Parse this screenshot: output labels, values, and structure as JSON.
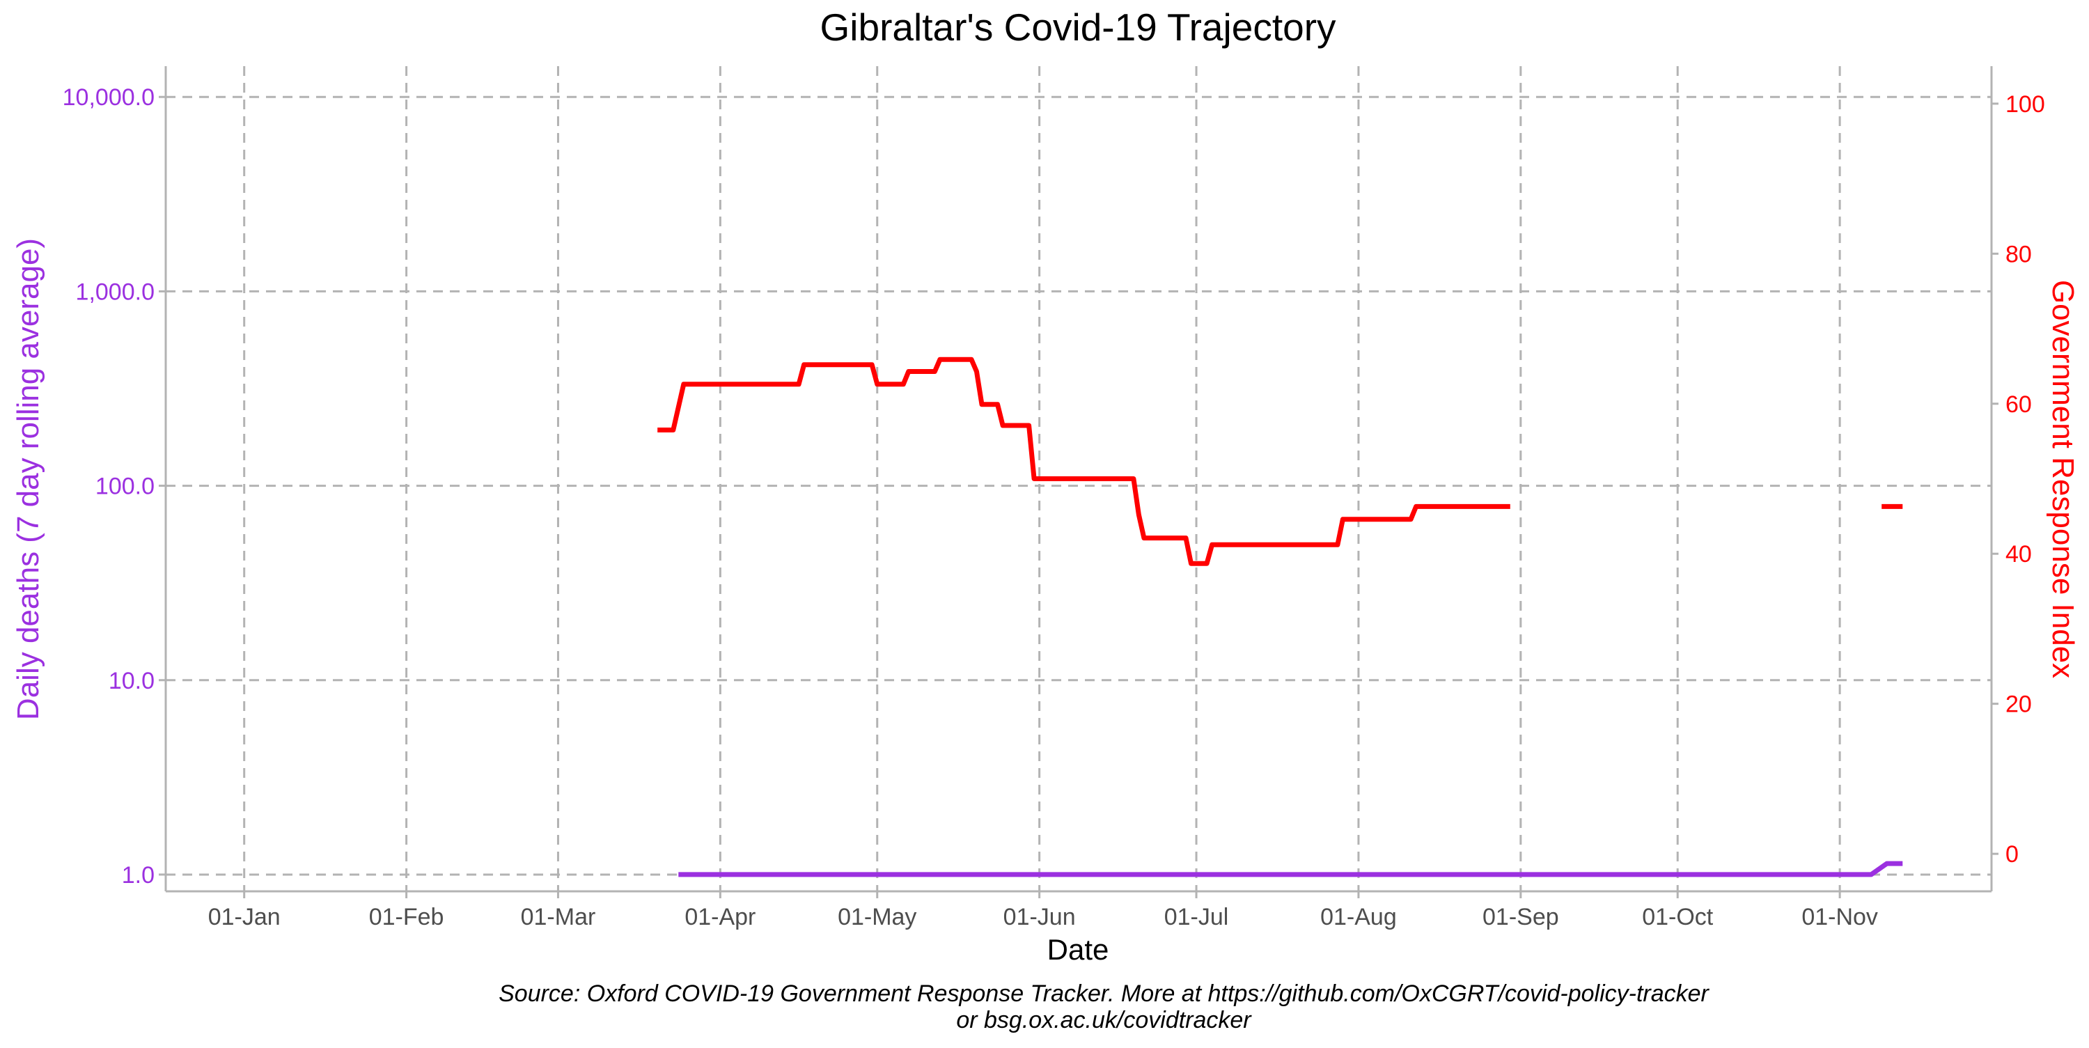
{
  "chart_data": {
    "type": "line",
    "title": "Gibraltar's Covid-19 Trajectory",
    "xlabel": "Date",
    "ylabel_left": "Daily deaths (7 day rolling average)",
    "ylabel_right": "Government Response Index",
    "caption_lines": [
      "Source: Oxford COVID-19 Government Response Tracker. More at https://github.com/OxCGRT/covid-policy-tracker",
      "or bsg.ox.ac.uk/covidtracker"
    ],
    "x_range": [
      "2019-12-17",
      "2020-11-30"
    ],
    "x_ticks": [
      {
        "label": "01-Jan",
        "date": "2020-01-01"
      },
      {
        "label": "01-Feb",
        "date": "2020-02-01"
      },
      {
        "label": "01-Mar",
        "date": "2020-03-01"
      },
      {
        "label": "01-Apr",
        "date": "2020-04-01"
      },
      {
        "label": "01-May",
        "date": "2020-05-01"
      },
      {
        "label": "01-Jun",
        "date": "2020-06-01"
      },
      {
        "label": "01-Jul",
        "date": "2020-07-01"
      },
      {
        "label": "01-Aug",
        "date": "2020-08-01"
      },
      {
        "label": "01-Sep",
        "date": "2020-09-01"
      },
      {
        "label": "01-Oct",
        "date": "2020-10-01"
      },
      {
        "label": "01-Nov",
        "date": "2020-11-01"
      }
    ],
    "y_left": {
      "scale": "log10",
      "range": [
        0.82,
        14400
      ],
      "ticks": [
        {
          "label": "1.0",
          "value": 1
        },
        {
          "label": "10.0",
          "value": 10
        },
        {
          "label": "100.0",
          "value": 100
        },
        {
          "label": "1,000.0",
          "value": 1000
        },
        {
          "label": "10,000.0",
          "value": 10000
        }
      ],
      "color": "#9b30e0"
    },
    "y_right": {
      "scale": "linear",
      "range": [
        -5,
        105
      ],
      "ticks": [
        {
          "label": "0",
          "value": 0
        },
        {
          "label": "20",
          "value": 20
        },
        {
          "label": "40",
          "value": 40
        },
        {
          "label": "60",
          "value": 60
        },
        {
          "label": "80",
          "value": 80
        },
        {
          "label": "100",
          "value": 100
        }
      ],
      "color": "#ff0000"
    },
    "grid": true,
    "series": [
      {
        "axis": "left",
        "color": "#9b30e0",
        "segments": [
          [
            [
              "2020-03-24",
              1.0
            ],
            [
              "2020-11-07",
              1.0
            ],
            [
              "2020-11-10",
              1.14
            ],
            [
              "2020-11-13",
              1.14
            ]
          ]
        ]
      },
      {
        "axis": "right",
        "color": "#ff0000",
        "segments": [
          [
            [
              "2020-03-20",
              56.5
            ],
            [
              "2020-03-23",
              56.5
            ],
            [
              "2020-03-25",
              62.6
            ],
            [
              "2020-04-16",
              62.6
            ],
            [
              "2020-04-17",
              65.2
            ],
            [
              "2020-04-30",
              65.2
            ],
            [
              "2020-05-01",
              62.6
            ],
            [
              "2020-05-06",
              62.6
            ],
            [
              "2020-05-07",
              64.3
            ],
            [
              "2020-05-12",
              64.3
            ],
            [
              "2020-05-13",
              65.9
            ],
            [
              "2020-05-19",
              65.9
            ],
            [
              "2020-05-20",
              64.3
            ],
            [
              "2020-05-21",
              59.9
            ],
            [
              "2020-05-24",
              59.9
            ],
            [
              "2020-05-25",
              57.1
            ],
            [
              "2020-05-30",
              57.1
            ],
            [
              "2020-05-31",
              50.0
            ],
            [
              "2020-06-19",
              50.0
            ],
            [
              "2020-06-20",
              45.2
            ],
            [
              "2020-06-21",
              42.1
            ],
            [
              "2020-06-29",
              42.1
            ],
            [
              "2020-06-30",
              38.7
            ],
            [
              "2020-07-03",
              38.7
            ],
            [
              "2020-07-04",
              41.2
            ],
            [
              "2020-07-28",
              41.2
            ],
            [
              "2020-07-29",
              44.6
            ],
            [
              "2020-08-11",
              44.6
            ],
            [
              "2020-08-12",
              46.3
            ],
            [
              "2020-08-30",
              46.3
            ]
          ],
          [
            [
              "2020-11-09",
              46.3
            ],
            [
              "2020-11-13",
              46.3
            ]
          ]
        ]
      }
    ]
  }
}
